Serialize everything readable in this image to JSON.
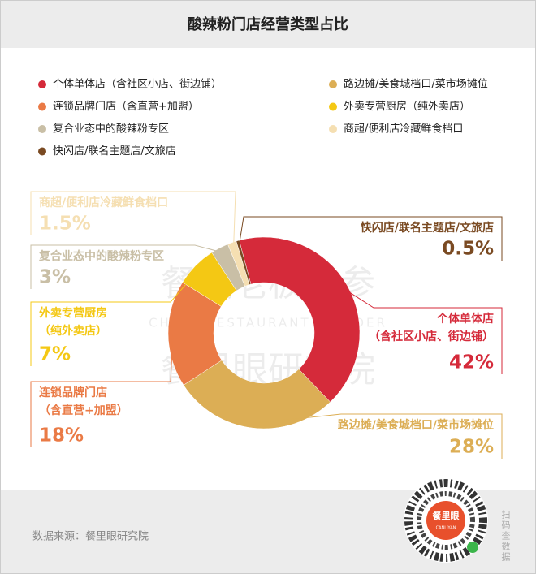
{
  "chart_data": {
    "type": "donut",
    "title": "酸辣粉门店经营类型占比",
    "categories": [
      "个体单体店（含社区小店、街边铺）",
      "路边摊/美食城档口/菜市场摊位",
      "连锁品牌门店（含直营+加盟）",
      "外卖专营厨房（纯外卖店）",
      "复合业态中的酸辣粉专区",
      "商超/便利店冷藏鲜食档口",
      "快闪店/联名主题店/文旅店"
    ],
    "values": [
      42,
      28,
      18,
      7,
      3,
      1.5,
      0.5
    ],
    "value_labels": [
      "42%",
      "28%",
      "18%",
      "7%",
      "3%",
      "1.5%",
      "0.5%"
    ],
    "colors": [
      "#d52a3a",
      "#dcae55",
      "#ea7a45",
      "#f4c814",
      "#c9bfa6",
      "#f5dfb2",
      "#7a4a22"
    ]
  },
  "watermark": [
    "餐饮老板内参",
    "CHINA RESTAURANT BUILDER",
    "餐里眼研究院"
  ],
  "source": "数据来源：餐里眼研究院",
  "qr_logo": "餐里眼",
  "qr_logo_sub": "CANLIYAN",
  "qr_hint": "扫码查数据"
}
